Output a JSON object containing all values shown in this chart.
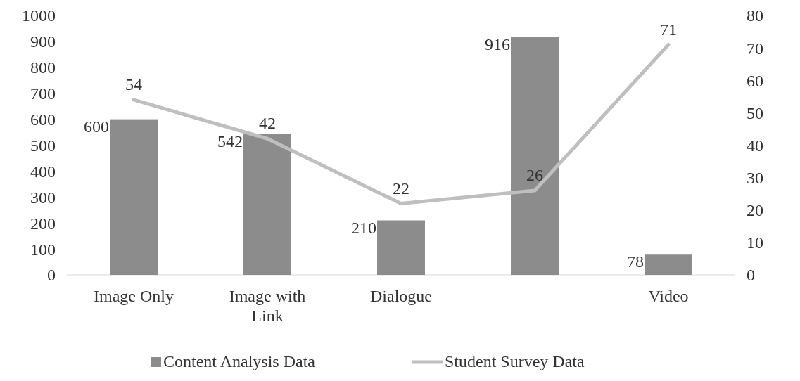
{
  "chart_data": {
    "type": "bar",
    "categories": [
      "Image Only",
      "Image with Link",
      "Dialogue",
      null,
      "Video"
    ],
    "series": [
      {
        "name": "Content Analysis Data",
        "color": "#8c8c8c",
        "values": [
          600,
          542,
          210,
          916,
          78
        ]
      },
      {
        "name": "Student Survey Data",
        "type": "line",
        "axis": "y2",
        "color": "#bfbfbf",
        "values": [
          54,
          42,
          22,
          26,
          71
        ]
      }
    ],
    "ylim": [
      0,
      1000
    ],
    "yticks": [
      0,
      100,
      200,
      300,
      400,
      500,
      600,
      700,
      800,
      900,
      1000
    ],
    "y2lim": [
      0,
      80
    ],
    "y2ticks": [
      0,
      10,
      20,
      30,
      40,
      50,
      60,
      70,
      80
    ],
    "data_labels": true,
    "legend": "bottom",
    "grid": false,
    "marker": "none",
    "line_style": "solid"
  }
}
